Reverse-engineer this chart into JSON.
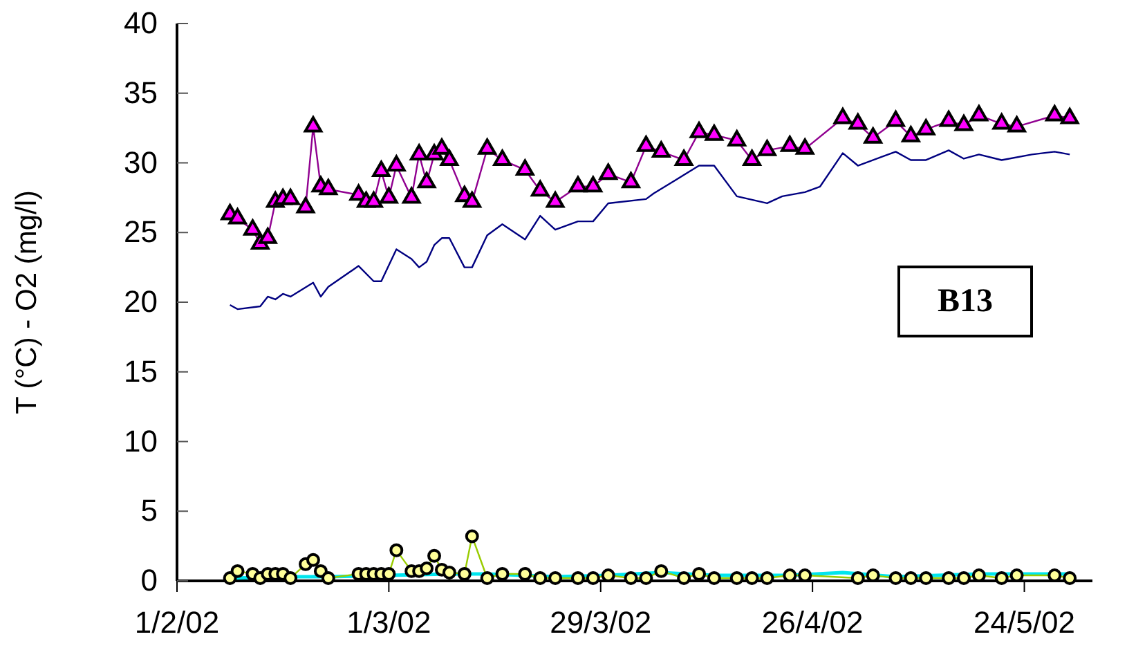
{
  "chart_data": {
    "type": "line",
    "ylabel": "T (°C) - O2 (mg/l)",
    "annotations": [
      "B13"
    ],
    "xlim": [
      "2002-02-01",
      "2002-06-02"
    ],
    "xticks": [
      {
        "value": "2002-02-01",
        "label": "1/2/02"
      },
      {
        "value": "2002-03-01",
        "label": "1/3/02"
      },
      {
        "value": "2002-03-29",
        "label": "29/3/02"
      },
      {
        "value": "2002-04-26",
        "label": "26/4/02"
      },
      {
        "value": "2002-05-24",
        "label": "24/5/02"
      }
    ],
    "ylim": [
      0,
      40
    ],
    "yticks": [
      0,
      5,
      10,
      15,
      20,
      25,
      30,
      35,
      40
    ],
    "grid": false,
    "series": [
      {
        "color": "#000080",
        "marker": "none",
        "x": [
          "2002-02-08",
          "2002-02-09",
          "2002-02-12",
          "2002-02-13",
          "2002-02-14",
          "2002-02-15",
          "2002-02-16",
          "2002-02-19",
          "2002-02-20",
          "2002-02-21",
          "2002-02-25",
          "2002-02-27",
          "2002-02-28",
          "2002-03-02",
          "2002-03-04",
          "2002-03-05",
          "2002-03-06",
          "2002-03-07",
          "2002-03-08",
          "2002-03-09",
          "2002-03-11",
          "2002-03-12",
          "2002-03-14",
          "2002-03-16",
          "2002-03-19",
          "2002-03-21",
          "2002-03-23",
          "2002-03-26",
          "2002-03-28",
          "2002-03-30",
          "2002-04-04",
          "2002-04-05",
          "2002-04-08",
          "2002-04-11",
          "2002-04-13",
          "2002-04-16",
          "2002-04-20",
          "2002-04-22",
          "2002-04-25",
          "2002-04-27",
          "2002-04-30",
          "2002-05-02",
          "2002-05-05",
          "2002-05-07",
          "2002-05-09",
          "2002-05-11",
          "2002-05-14",
          "2002-05-16",
          "2002-05-18",
          "2002-05-21",
          "2002-05-25",
          "2002-05-28",
          "2002-05-30"
        ],
        "values": [
          19.8,
          19.5,
          19.7,
          20.4,
          20.2,
          20.6,
          20.4,
          21.4,
          20.4,
          21.1,
          22.6,
          21.5,
          21.5,
          23.8,
          23.1,
          22.5,
          22.9,
          24.1,
          24.6,
          24.6,
          22.5,
          22.5,
          24.8,
          25.6,
          24.5,
          26.2,
          25.2,
          25.8,
          25.8,
          27.1,
          27.4,
          27.8,
          28.8,
          29.8,
          29.8,
          27.6,
          27.1,
          27.6,
          27.9,
          28.3,
          30.7,
          29.8,
          30.4,
          30.8,
          30.2,
          30.2,
          30.9,
          30.3,
          30.6,
          30.2,
          30.6,
          30.8,
          30.6
        ]
      },
      {
        "color": "#ff00ff",
        "marker": "triangle",
        "x": [
          "2002-02-08",
          "2002-02-09",
          "2002-02-11",
          "2002-02-12",
          "2002-02-13",
          "2002-02-14",
          "2002-02-15",
          "2002-02-16",
          "2002-02-18",
          "2002-02-19",
          "2002-02-20",
          "2002-02-21",
          "2002-02-25",
          "2002-02-26",
          "2002-02-27",
          "2002-02-28",
          "2002-03-01",
          "2002-03-02",
          "2002-03-04",
          "2002-03-05",
          "2002-03-06",
          "2002-03-07",
          "2002-03-08",
          "2002-03-09",
          "2002-03-11",
          "2002-03-12",
          "2002-03-14",
          "2002-03-16",
          "2002-03-19",
          "2002-03-21",
          "2002-03-23",
          "2002-03-26",
          "2002-03-28",
          "2002-03-30",
          "2002-04-02",
          "2002-04-04",
          "2002-04-06",
          "2002-04-09",
          "2002-04-11",
          "2002-04-13",
          "2002-04-16",
          "2002-04-18",
          "2002-04-20",
          "2002-04-23",
          "2002-04-25",
          "2002-04-30",
          "2002-05-02",
          "2002-05-04",
          "2002-05-07",
          "2002-05-09",
          "2002-05-11",
          "2002-05-14",
          "2002-05-16",
          "2002-05-18",
          "2002-05-21",
          "2002-05-23",
          "2002-05-28",
          "2002-05-30"
        ],
        "values": [
          26.3,
          26.0,
          25.2,
          24.2,
          24.6,
          27.2,
          27.4,
          27.4,
          26.8,
          32.6,
          28.3,
          28.1,
          27.7,
          27.2,
          27.2,
          29.4,
          27.5,
          29.8,
          27.5,
          30.6,
          28.6,
          30.6,
          31.0,
          30.2,
          27.6,
          27.2,
          31.0,
          30.2,
          29.5,
          28.0,
          27.2,
          28.3,
          28.3,
          29.2,
          28.6,
          31.2,
          30.8,
          30.2,
          32.2,
          32.0,
          31.6,
          30.2,
          30.9,
          31.2,
          31.0,
          33.2,
          32.8,
          31.8,
          33.0,
          31.9,
          32.4,
          33.0,
          32.7,
          33.4,
          32.8,
          32.6,
          33.4,
          33.2
        ]
      },
      {
        "color": "#00e5ee",
        "marker": "none",
        "x": [
          "2002-02-08",
          "2002-02-16",
          "2002-02-21",
          "2002-03-01",
          "2002-03-09",
          "2002-03-14",
          "2002-03-23",
          "2002-03-30",
          "2002-04-06",
          "2002-04-13",
          "2002-04-23",
          "2002-04-30",
          "2002-05-07",
          "2002-05-18",
          "2002-05-23",
          "2002-05-30"
        ],
        "values": [
          0.2,
          0.3,
          0.3,
          0.4,
          0.5,
          0.5,
          0.3,
          0.4,
          0.6,
          0.4,
          0.4,
          0.6,
          0.3,
          0.5,
          0.5,
          0.5
        ]
      },
      {
        "color": "#ffff99",
        "marker": "circle",
        "x": [
          "2002-02-08",
          "2002-02-09",
          "2002-02-11",
          "2002-02-12",
          "2002-02-13",
          "2002-02-14",
          "2002-02-15",
          "2002-02-16",
          "2002-02-18",
          "2002-02-19",
          "2002-02-20",
          "2002-02-21",
          "2002-02-25",
          "2002-02-26",
          "2002-02-27",
          "2002-02-28",
          "2002-03-01",
          "2002-03-02",
          "2002-03-04",
          "2002-03-05",
          "2002-03-06",
          "2002-03-07",
          "2002-03-08",
          "2002-03-09",
          "2002-03-11",
          "2002-03-12",
          "2002-03-14",
          "2002-03-16",
          "2002-03-19",
          "2002-03-21",
          "2002-03-23",
          "2002-03-26",
          "2002-03-28",
          "2002-03-30",
          "2002-04-02",
          "2002-04-04",
          "2002-04-06",
          "2002-04-09",
          "2002-04-11",
          "2002-04-13",
          "2002-04-16",
          "2002-04-18",
          "2002-04-20",
          "2002-04-23",
          "2002-04-25",
          "2002-05-02",
          "2002-05-04",
          "2002-05-07",
          "2002-05-09",
          "2002-05-11",
          "2002-05-14",
          "2002-05-16",
          "2002-05-18",
          "2002-05-21",
          "2002-05-23",
          "2002-05-28",
          "2002-05-30"
        ],
        "values": [
          0.2,
          0.7,
          0.5,
          0.2,
          0.5,
          0.5,
          0.5,
          0.2,
          1.2,
          1.5,
          0.7,
          0.2,
          0.5,
          0.5,
          0.5,
          0.5,
          0.5,
          2.2,
          0.7,
          0.7,
          0.9,
          1.8,
          0.8,
          0.6,
          0.5,
          3.2,
          0.2,
          0.5,
          0.5,
          0.2,
          0.2,
          0.2,
          0.2,
          0.4,
          0.2,
          0.2,
          0.7,
          0.2,
          0.5,
          0.2,
          0.2,
          0.2,
          0.2,
          0.4,
          0.4,
          0.2,
          0.4,
          0.2,
          0.2,
          0.2,
          0.2,
          0.2,
          0.4,
          0.2,
          0.4,
          0.4,
          0.2
        ]
      }
    ]
  }
}
